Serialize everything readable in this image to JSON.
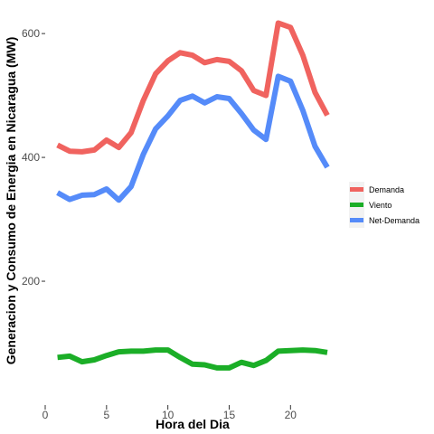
{
  "chart_data": {
    "type": "line",
    "title": "",
    "xlabel": "Hora del Dia",
    "ylabel": "Generacion y Consumo de Energia en Nicaragua (MW)",
    "xlim": [
      0,
      23
    ],
    "ylim": [
      0,
      625
    ],
    "x_ticks": [
      0,
      5,
      10,
      15,
      20
    ],
    "y_ticks": [
      200,
      400,
      600
    ],
    "x_tick_labels": [
      "0",
      "5",
      "10",
      "15",
      "20"
    ],
    "y_tick_labels": [
      "200",
      "400",
      "600"
    ],
    "grid": false,
    "legend_position": "right",
    "x": [
      1,
      2,
      3,
      4,
      5,
      6,
      7,
      8,
      9,
      10,
      11,
      12,
      13,
      14,
      15,
      16,
      17,
      18,
      19,
      20,
      21,
      22,
      23
    ],
    "series": [
      {
        "name": "Demanda",
        "color": "#F0635F",
        "values": [
          420,
          410,
          409,
          412,
          428,
          416,
          440,
          492,
          535,
          556,
          569,
          565,
          553,
          558,
          555,
          540,
          508,
          500,
          617,
          610,
          565,
          505,
          468
        ]
      },
      {
        "name": "Viento",
        "color": "#1BAE27",
        "values": [
          77,
          79,
          70,
          73,
          80,
          86,
          87,
          87,
          89,
          89,
          77,
          66,
          65,
          60,
          60,
          69,
          64,
          72,
          87,
          88,
          89,
          88,
          85
        ]
      },
      {
        "name": "Net-Demanda",
        "color": "#558BF9",
        "values": [
          343,
          332,
          339,
          340,
          349,
          331,
          353,
          405,
          446,
          467,
          492,
          499,
          488,
          498,
          495,
          471,
          444,
          429,
          531,
          523,
          476,
          418,
          384
        ]
      }
    ]
  }
}
